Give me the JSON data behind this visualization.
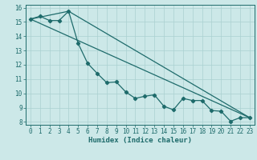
{
  "xlabel": "Humidex (Indice chaleur)",
  "bg_color": "#cce8e8",
  "line_color": "#1e6b6b",
  "grid_color": "#aad0d0",
  "xlim": [
    -0.5,
    23.5
  ],
  "ylim": [
    7.8,
    16.2
  ],
  "xticks": [
    0,
    1,
    2,
    3,
    4,
    5,
    6,
    7,
    8,
    9,
    10,
    11,
    12,
    13,
    14,
    15,
    16,
    17,
    18,
    19,
    20,
    21,
    22,
    23
  ],
  "yticks": [
    8,
    9,
    10,
    11,
    12,
    13,
    14,
    15,
    16
  ],
  "line1_x": [
    0,
    1,
    2,
    3,
    4,
    5,
    6,
    7,
    8,
    9,
    10,
    11,
    12,
    13,
    14,
    15,
    16,
    17,
    18,
    19,
    20,
    21,
    22,
    23
  ],
  "line1_y": [
    15.2,
    15.4,
    15.1,
    15.1,
    15.75,
    13.5,
    12.1,
    11.4,
    10.75,
    10.8,
    10.1,
    9.65,
    9.8,
    9.9,
    9.1,
    8.85,
    9.65,
    9.5,
    9.5,
    8.8,
    8.75,
    8.05,
    8.3,
    8.3
  ],
  "line2_x": [
    0,
    4,
    23
  ],
  "line2_y": [
    15.2,
    15.75,
    8.3
  ],
  "line3_x": [
    0,
    23
  ],
  "line3_y": [
    15.2,
    8.3
  ],
  "marker_size": 2.2,
  "lw": 0.9,
  "xlabel_fontsize": 6.5,
  "tick_fontsize": 5.5
}
